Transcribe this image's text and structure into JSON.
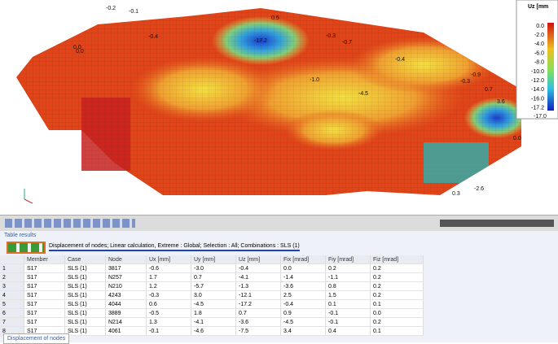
{
  "view": {
    "legend": {
      "title": "Uz [mm",
      "ticks": [
        "0.0",
        "-2.0",
        "-4.0",
        "-6.0",
        "-8.0",
        "-10.0",
        "-12.0",
        "-14.0",
        "-16.0",
        "-17.2"
      ]
    },
    "labels": [
      "0.5",
      "-0.2",
      "-0.1",
      "-0.4",
      "0.0",
      "-17.2",
      "-0.3",
      "-0.7",
      "-0.4",
      "-0.9",
      "-0.3",
      "0.7",
      "3.6",
      "-17.0",
      "0.0",
      "-2.6",
      "0.3",
      "-1.0",
      "-4.5",
      "0.0"
    ]
  },
  "panel": {
    "title": "Table results",
    "description": "Displacement of nodes; Linear calculation, Extreme : Global; Selection : All; Combinations : SLS (1)"
  },
  "table": {
    "columns": [
      "",
      "Member",
      "Case",
      "Node",
      "Ux [mm]",
      "Uy [mm]",
      "Uz [mm]",
      "Fix [mrad]",
      "Fiy [mrad]",
      "Fiz [mrad]"
    ],
    "rows": [
      [
        "1",
        "S17",
        "SLS (1)",
        "3817",
        "-0.6",
        "-3.0",
        "-0.4",
        "0.0",
        "0.2",
        "0.2"
      ],
      [
        "2",
        "S17",
        "SLS (1)",
        "N257",
        "1.7",
        "0.7",
        "-4.1",
        "-1.4",
        "-1.1",
        "0.2"
      ],
      [
        "3",
        "S17",
        "SLS (1)",
        "N210",
        "1.2",
        "-5.7",
        "-1.3",
        "-3.6",
        "0.8",
        "0.2"
      ],
      [
        "4",
        "S17",
        "SLS (1)",
        "4243",
        "-0.3",
        "3.0",
        "-12.1",
        "2.5",
        "1.5",
        "0.2"
      ],
      [
        "5",
        "S17",
        "SLS (1)",
        "4044",
        "0.6",
        "-4.5",
        "-17.2",
        "-0.4",
        "0.1",
        "0.1"
      ],
      [
        "6",
        "S17",
        "SLS (1)",
        "3889",
        "-0.5",
        "1.8",
        "0.7",
        "0.9",
        "-0.1",
        "0.0"
      ],
      [
        "7",
        "S17",
        "SLS (1)",
        "N214",
        "1.3",
        "-4.1",
        "-3.6",
        "-4.5",
        "-0.1",
        "0.2"
      ],
      [
        "8",
        "S17",
        "SLS (1)",
        "4061",
        "-0.1",
        "-4.6",
        "-7.5",
        "3.4",
        "0.4",
        "0.1"
      ]
    ]
  },
  "tab": "Displacement of nodes"
}
